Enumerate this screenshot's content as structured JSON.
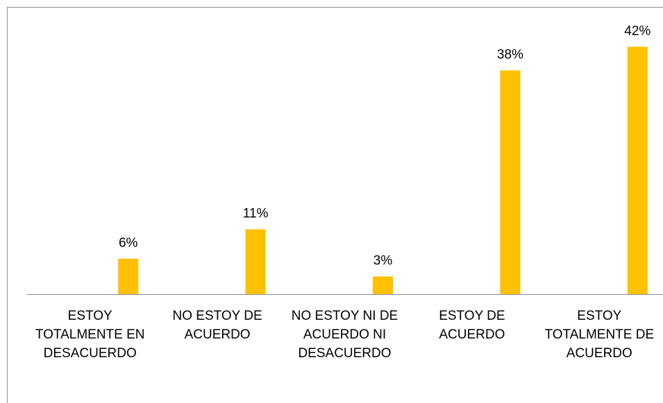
{
  "chart_data": {
    "type": "bar",
    "categories": [
      "ESTOY TOTALMENTE EN DESACUERDO",
      "NO ESTOY DE ACUERDO",
      "NO ESTOY NI DE ACUERDO NI DESACUERDO",
      "ESTOY DE ACUERDO",
      "ESTOY TOTALMENTE DE ACUERDO"
    ],
    "values": [
      6,
      11,
      3,
      38,
      42
    ],
    "value_labels": [
      "6%",
      "11%",
      "3%",
      "38%",
      "42%"
    ],
    "color": "#ffc000",
    "ylim": [
      0,
      45
    ]
  }
}
